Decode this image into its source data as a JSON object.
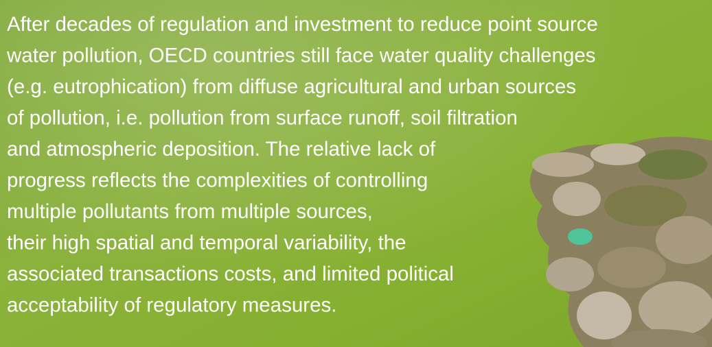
{
  "paragraph": {
    "lines": [
      "After decades of regulation and investment to reduce point source",
      "water pollution, OECD countries still face water quality challenges",
      "(e.g. eutrophication) from diffuse agricultural and urban sources",
      "of pollution, i.e. pollution from surface runoff, soil filtration",
      "and atmospheric deposition. The relative lack of",
      "progress reflects the complexities of controlling",
      "multiple pollutants from multiple sources,",
      "their high spatial and temporal variability, the",
      "associated transactions costs, and limited political",
      "acceptability of regulatory measures."
    ]
  }
}
